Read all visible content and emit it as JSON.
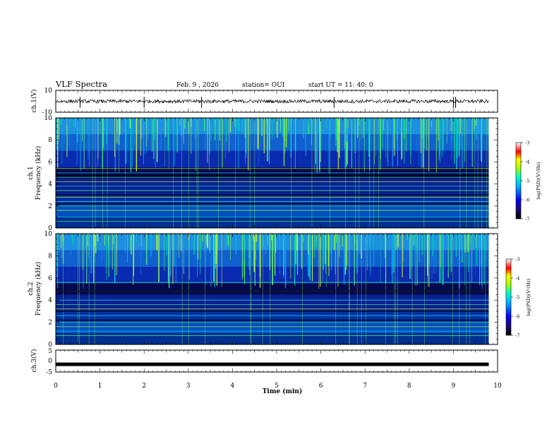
{
  "header": {
    "title": "VLF Spectra",
    "date": "Feb. 9 , 2026",
    "station": "station= OUI",
    "start": "start  UT =   11: 40: 0"
  },
  "chart_data": [
    {
      "type": "line",
      "panel": "ch1-waveform",
      "ylabel": "ch.1(V)",
      "ylim": [
        -10,
        10
      ],
      "yticks": [
        "10",
        "-10"
      ],
      "xlim": [
        0,
        10
      ],
      "series": [
        {
          "values_note": "noisy trace centered near 0 V"
        }
      ],
      "baseline_v": 0,
      "spikes_min": [
        0.55,
        2.0,
        3.3,
        6.3,
        9.0,
        9.05
      ]
    },
    {
      "type": "heatmap",
      "panel": "ch1-spectrogram",
      "ylabel": "ch.1\nFrequency (kHz)",
      "ylim": [
        0,
        10
      ],
      "yticks": [
        "0",
        "2",
        "4",
        "6",
        "8",
        "10"
      ],
      "xlim": [
        0,
        10
      ],
      "data_end_min": 9.8,
      "tones_khz": [
        0.6,
        1.0,
        1.6,
        2.0,
        2.4,
        2.8,
        3.4,
        3.8,
        4.2,
        4.6,
        5.0,
        5.4
      ],
      "colorbar": {
        "label": "log(PSD)(V²/Hz)",
        "ticks": [
          "-3",
          "-4",
          "-5",
          "-6",
          "-7"
        ],
        "range": [
          -7,
          -3
        ]
      }
    },
    {
      "type": "heatmap",
      "panel": "ch2-spectrogram",
      "ylabel": "ch.2\nFrequency (kHz)",
      "ylim": [
        0,
        10
      ],
      "yticks": [
        "0",
        "2",
        "4",
        "6",
        "8",
        "10"
      ],
      "xlim": [
        0,
        10
      ],
      "data_end_min": 9.8,
      "tones_khz": [
        0.8,
        1.2,
        1.6,
        2.0,
        2.6,
        3.2,
        3.6,
        4.0,
        4.8,
        5.6
      ],
      "colorbar": {
        "label": "log(PSD)(V²/Hz)",
        "ticks": [
          "-3",
          "-4",
          "-5",
          "-6",
          "-7"
        ],
        "range": [
          -7,
          -3
        ]
      }
    },
    {
      "type": "line",
      "panel": "ch3-waveform",
      "ylabel": "ch.3(V)",
      "ylim": [
        -5,
        5
      ],
      "yticks": [
        "5",
        "0",
        "-5"
      ],
      "xlim": [
        0,
        10
      ],
      "baseline_v": -1.5,
      "xlabel": "Time (min)",
      "xticks": [
        "0",
        "1",
        "2",
        "3",
        "4",
        "5",
        "6",
        "7",
        "8",
        "9",
        "10"
      ]
    }
  ]
}
